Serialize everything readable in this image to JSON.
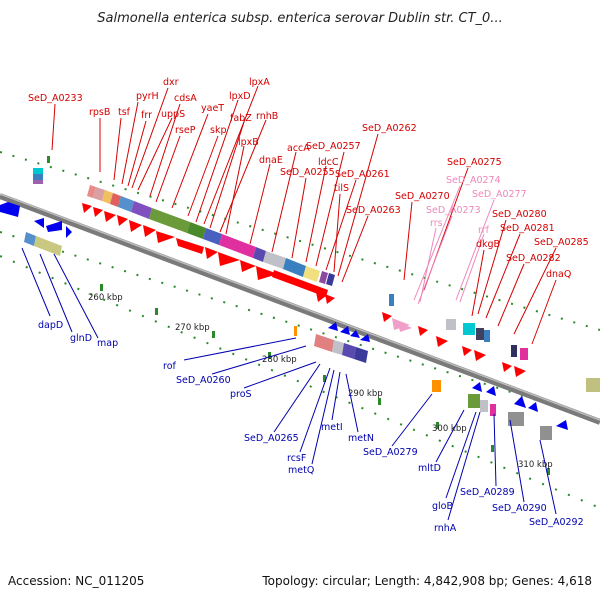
{
  "title": "Salmonella enterica subsp. enterica serovar Dublin str. CT_0...",
  "accession": "Accession: NC_011205",
  "summary": "Topology: circular; Length: 4,842,908 bp; Genes: 4,618",
  "colors": {
    "forward_label": "#d40000",
    "reverse_label": "#0000b0",
    "rna_label": "#ee88bb",
    "forward_arrow": "#ff0000",
    "reverse_arrow": "#0000ee",
    "backbone": "#7a7a7a",
    "tick": "#2a8a2a"
  },
  "scale_labels": [
    "260 kbp",
    "270 kbp",
    "280 kbp",
    "290 kbp",
    "300 kbp",
    "310 kbp"
  ],
  "forward_genes": [
    "SeD_A0233",
    "rpsB",
    "tsf",
    "pyrH",
    "frr",
    "dxr",
    "uppS",
    "cdsA",
    "rseP",
    "yaeT",
    "skp",
    "lpxD",
    "lpxA",
    "fabZ",
    "rnhB",
    "lpxB",
    "dnaE",
    "accA",
    "SeD_A0255",
    "ldcC",
    "SeD_A0257",
    "SeD_A0261",
    "tilS",
    "SeD_A0262",
    "SeD_A0263",
    "SeD_A0270",
    "SeD_A0275",
    "SeD_A0280",
    "SeD_A0281",
    "dkgB",
    "SeD_A0282",
    "SeD_A0285",
    "dnaQ"
  ],
  "rna_genes": [
    "SeD_A0274",
    "SeD_A0273",
    "SeD_A0277",
    "rrs",
    "rrf"
  ],
  "reverse_genes": [
    "dapD",
    "glnD",
    "map",
    "rof",
    "SeD_A0260",
    "proS",
    "SeD_A0265",
    "rcsF",
    "metQ",
    "metI",
    "metN",
    "SeD_A0279",
    "mltD",
    "gloB",
    "rnhA",
    "SeD_A0289",
    "SeD_A0290",
    "SeD_A0292"
  ]
}
